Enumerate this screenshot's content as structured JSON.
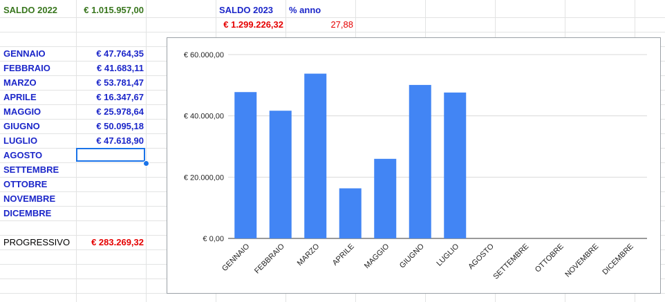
{
  "header": {
    "saldo_2022_label": "SALDO 2022",
    "saldo_2022_value": "€ 1.015.957,00",
    "saldo_2023_label": "SALDO 2023",
    "saldo_2023_value": "€ 1.299.226,32",
    "percent_label": "% anno",
    "percent_value": "27,88"
  },
  "months": [
    {
      "name": "GENNAIO",
      "value": "€ 47.764,35"
    },
    {
      "name": "FEBBRAIO",
      "value": "€ 41.683,11"
    },
    {
      "name": "MARZO",
      "value": "€ 53.781,47"
    },
    {
      "name": "APRILE",
      "value": "€ 16.347,67"
    },
    {
      "name": "MAGGIO",
      "value": "€ 25.978,64"
    },
    {
      "name": "GIUGNO",
      "value": "€ 50.095,18"
    },
    {
      "name": "LUGLIO",
      "value": "€ 47.618,90"
    },
    {
      "name": "AGOSTO",
      "value": ""
    },
    {
      "name": "SETTEMBRE",
      "value": ""
    },
    {
      "name": "OTTOBRE",
      "value": ""
    },
    {
      "name": "NOVEMBRE",
      "value": ""
    },
    {
      "name": "DICEMBRE",
      "value": ""
    }
  ],
  "progressivo": {
    "label": "PROGRESSIVO",
    "value": "€ 283.269,32"
  },
  "colors": {
    "bar": "#4285f4",
    "blue_text": "#1b26c9",
    "green_text": "#38761d",
    "red_text": "#e50000",
    "selection": "#1a73e8"
  },
  "chart_data": {
    "type": "bar",
    "categories": [
      "GENNAIO",
      "FEBBRAIO",
      "MARZO",
      "APRILE",
      "MAGGIO",
      "GIUGNO",
      "LUGLIO",
      "AGOSTO",
      "SETTEMBRE",
      "OTTOBRE",
      "NOVEMBRE",
      "DICEMBRE"
    ],
    "values": [
      47764.35,
      41683.11,
      53781.47,
      16347.67,
      25978.64,
      50095.18,
      47618.9,
      null,
      null,
      null,
      null,
      null
    ],
    "title": "",
    "xlabel": "",
    "ylabel": "",
    "ylim": [
      0,
      60000
    ],
    "yticks": [
      "€ 0,00",
      "€ 20.000,00",
      "€ 40.000,00",
      "€ 60.000,00"
    ],
    "grid": true,
    "legend": "none"
  }
}
